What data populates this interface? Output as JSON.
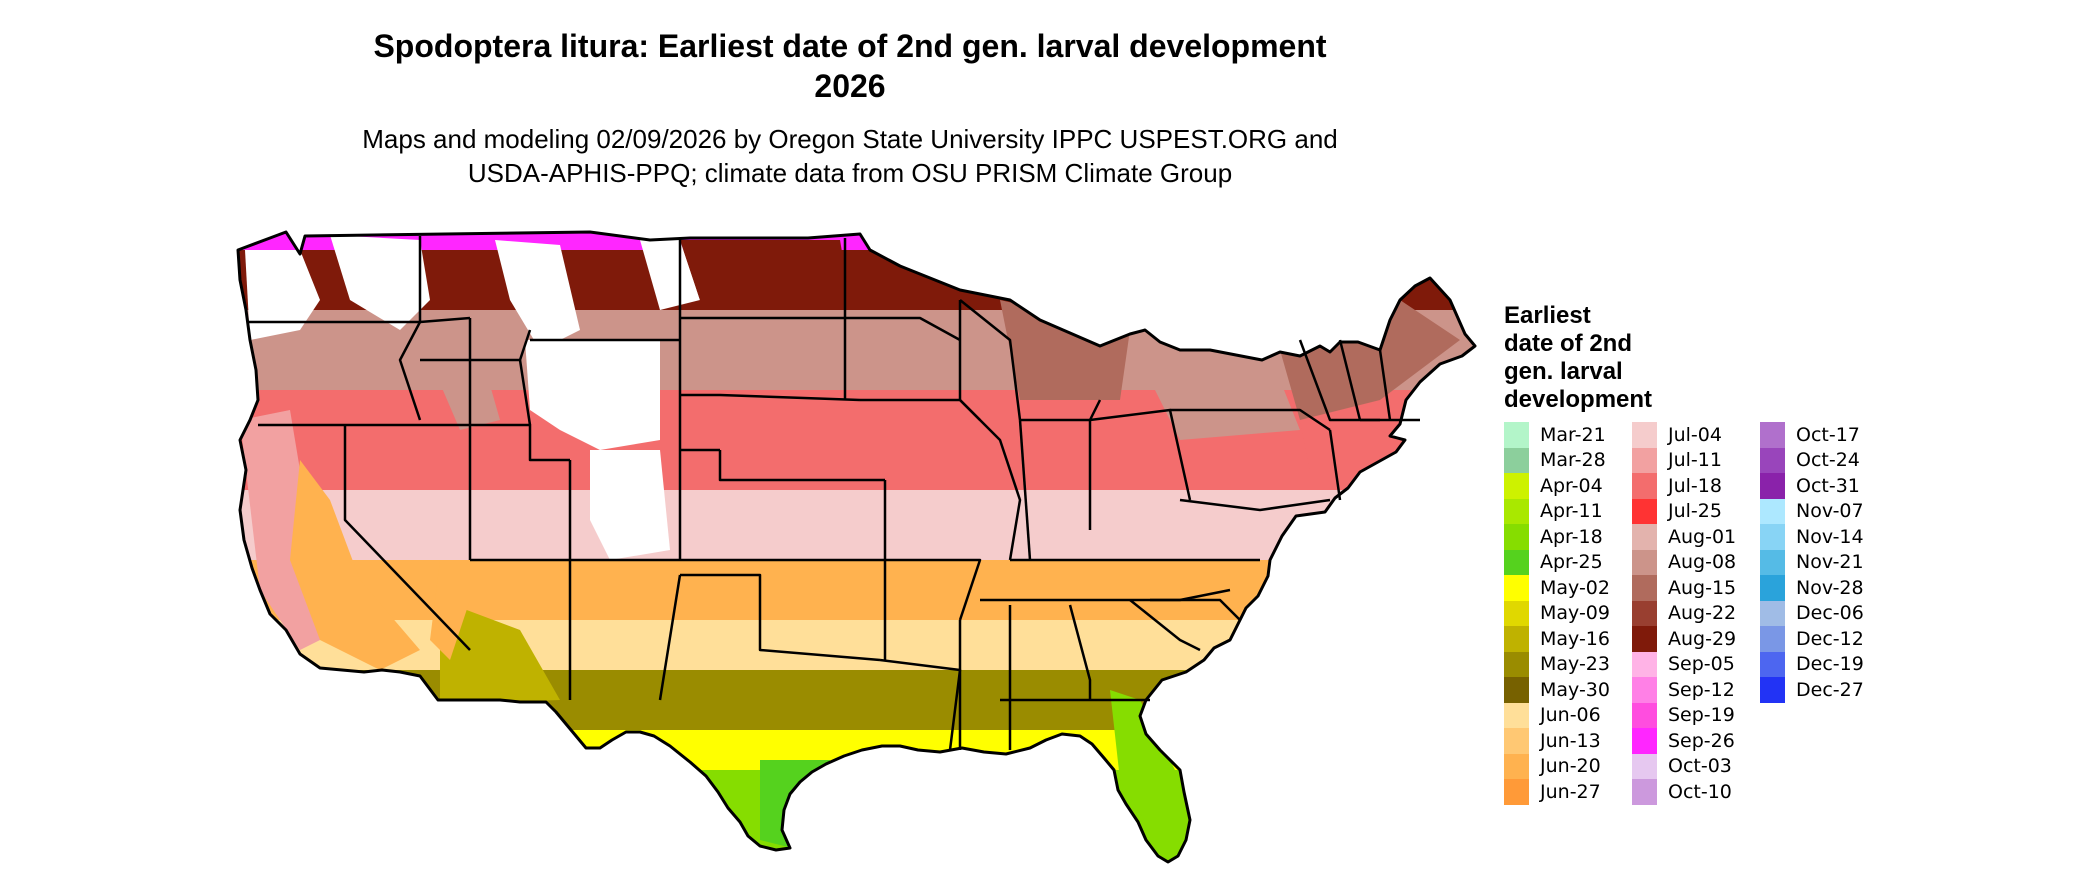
{
  "title": {
    "line1": "Spodoptera litura: Earliest date of 2nd gen. larval development",
    "line2": "2026"
  },
  "subtitle": {
    "line1": "Maps and modeling 02/09/2026 by Oregon State University IPPC USPEST.ORG and",
    "line2": "USDA-APHIS-PPQ; climate data from OSU PRISM Climate Group"
  },
  "legend": {
    "title_lines": [
      "Earliest",
      "date of 2nd",
      "gen. larval",
      "development"
    ],
    "items": [
      {
        "label": "Mar-21",
        "color": "#b3f5c9"
      },
      {
        "label": "Mar-28",
        "color": "#8ccf9c"
      },
      {
        "label": "Apr-04",
        "color": "#cdf200"
      },
      {
        "label": "Apr-11",
        "color": "#a9e800"
      },
      {
        "label": "Apr-18",
        "color": "#86dd00"
      },
      {
        "label": "Apr-25",
        "color": "#55d21e"
      },
      {
        "label": "May-02",
        "color": "#ffff00"
      },
      {
        "label": "May-09",
        "color": "#e0d800"
      },
      {
        "label": "May-16",
        "color": "#bfb200"
      },
      {
        "label": "May-23",
        "color": "#9a8c00"
      },
      {
        "label": "May-30",
        "color": "#776100"
      },
      {
        "label": "Jun-06",
        "color": "#ffdf99"
      },
      {
        "label": "Jun-13",
        "color": "#ffc873"
      },
      {
        "label": "Jun-20",
        "color": "#ffb24f"
      },
      {
        "label": "Jun-27",
        "color": "#ff9a38"
      },
      {
        "label": "Jul-04",
        "color": "#f5cccc"
      },
      {
        "label": "Jul-11",
        "color": "#f2a1a1"
      },
      {
        "label": "Jul-18",
        "color": "#f36d6d"
      },
      {
        "label": "Jul-25",
        "color": "#ff3333"
      },
      {
        "label": "Aug-01",
        "color": "#e3b3ad"
      },
      {
        "label": "Aug-08",
        "color": "#cc948a"
      },
      {
        "label": "Aug-15",
        "color": "#b06b5d"
      },
      {
        "label": "Aug-22",
        "color": "#993f30"
      },
      {
        "label": "Aug-29",
        "color": "#7f1a0a"
      },
      {
        "label": "Sep-05",
        "color": "#ffb3e6"
      },
      {
        "label": "Sep-12",
        "color": "#ff80e6"
      },
      {
        "label": "Sep-19",
        "color": "#ff4ddf"
      },
      {
        "label": "Sep-26",
        "color": "#ff26ff"
      },
      {
        "label": "Oct-03",
        "color": "#e6c8f0"
      },
      {
        "label": "Oct-10",
        "color": "#cc99dd"
      },
      {
        "label": "Oct-17",
        "color": "#b070cc"
      },
      {
        "label": "Oct-24",
        "color": "#9945bb"
      },
      {
        "label": "Oct-31",
        "color": "#8a22aa"
      },
      {
        "label": "Nov-07",
        "color": "#ade8ff"
      },
      {
        "label": "Nov-14",
        "color": "#88d4f5"
      },
      {
        "label": "Nov-21",
        "color": "#55bbe6"
      },
      {
        "label": "Nov-28",
        "color": "#2aa3db"
      },
      {
        "label": "Dec-06",
        "color": "#a0bce6"
      },
      {
        "label": "Dec-12",
        "color": "#7a97e6"
      },
      {
        "label": "Dec-19",
        "color": "#4d66f0"
      },
      {
        "label": "Dec-27",
        "color": "#2233f5"
      }
    ]
  },
  "map": {
    "bands": [
      {
        "date": "Apr-18",
        "color": "#86dd00"
      },
      {
        "date": "May-02",
        "color": "#ffff00"
      },
      {
        "date": "May-16",
        "color": "#bfb200"
      },
      {
        "date": "May-23",
        "color": "#9a8c00"
      },
      {
        "date": "Jun-06",
        "color": "#ffdf99"
      },
      {
        "date": "Jun-20",
        "color": "#ffb24f"
      },
      {
        "date": "Jul-04",
        "color": "#f5cccc"
      },
      {
        "date": "Jul-18",
        "color": "#f36d6d"
      },
      {
        "date": "Aug-08",
        "color": "#cc948a"
      },
      {
        "date": "Aug-29",
        "color": "#7f1a0a"
      },
      {
        "date": "Sep-26",
        "color": "#ff26ff"
      }
    ],
    "no_development_color": "#ffffff"
  }
}
